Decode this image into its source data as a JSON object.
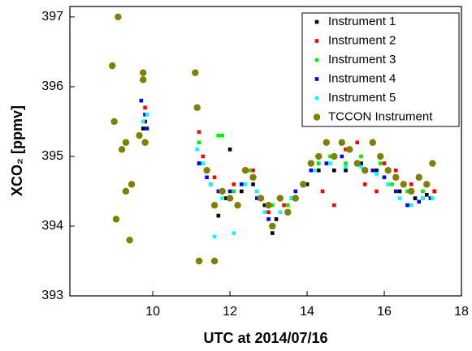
{
  "chart_data": {
    "type": "scatter",
    "xlabel": "UTC at 2014/07/16",
    "ylabel": "XCO₂ [ppmv]",
    "xlim": [
      7.85,
      18
    ],
    "ylim": [
      393,
      397.15
    ],
    "xticks": [
      10,
      12,
      14,
      16,
      18
    ],
    "yticks": [
      393,
      394,
      395,
      396,
      397
    ],
    "legend": "upper right",
    "series": [
      {
        "name": "Instrument 1",
        "color": "#000000",
        "marker": "square",
        "x": [
          9.75,
          9.8,
          11.2,
          11.5,
          11.7,
          11.9,
          12.0,
          12.3,
          12.6,
          12.9,
          13.1,
          13.2,
          13.6,
          14.0,
          14.3,
          14.7,
          15.0,
          15.4,
          15.8,
          16.1,
          16.4,
          16.8,
          17.1,
          17.3
        ],
        "values": [
          395.4,
          395.5,
          394.9,
          394.6,
          394.15,
          394.4,
          395.1,
          394.5,
          394.6,
          394.3,
          393.9,
          394.1,
          394.4,
          394.6,
          394.8,
          394.8,
          394.8,
          394.9,
          394.8,
          394.6,
          394.5,
          394.4,
          394.45,
          394.5
        ]
      },
      {
        "name": "Instrument 2",
        "color": "#ff0000",
        "marker": "square",
        "x": [
          9.8,
          11.2,
          11.3,
          11.6,
          12.1,
          12.6,
          13.0,
          13.4,
          14.1,
          14.4,
          14.7,
          15.0,
          15.3,
          15.5,
          15.8,
          16.0,
          16.3,
          16.7,
          17.0,
          17.3
        ],
        "values": [
          395.7,
          395.35,
          395.0,
          394.7,
          394.6,
          394.8,
          394.2,
          394.3,
          394.9,
          394.5,
          394.3,
          395.1,
          395.2,
          394.6,
          394.5,
          394.9,
          394.8,
          394.6,
          394.4,
          394.5
        ]
      },
      {
        "name": "Instrument 3",
        "color": "#00ee00",
        "marker": "square",
        "x": [
          9.8,
          11.2,
          11.4,
          11.7,
          11.8,
          12.1,
          12.5,
          12.8,
          13.1,
          13.5,
          13.9,
          14.3,
          14.6,
          15.0,
          15.4,
          15.9,
          16.2,
          16.6,
          17.0,
          17.2
        ],
        "values": [
          395.6,
          395.2,
          394.8,
          395.3,
          395.3,
          394.5,
          394.8,
          394.4,
          394.3,
          394.3,
          394.6,
          394.9,
          395.0,
          394.9,
          395.0,
          394.9,
          394.6,
          394.5,
          394.5,
          394.4
        ]
      },
      {
        "name": "Instrument 4",
        "color": "#0000ff",
        "marker": "square",
        "x": [
          9.7,
          9.8,
          9.85,
          11.2,
          11.4,
          11.7,
          12.0,
          12.3,
          12.7,
          13.0,
          13.3,
          13.7,
          14.1,
          14.5,
          14.9,
          15.3,
          15.7,
          16.0,
          16.3,
          16.6,
          16.9,
          17.2
        ],
        "values": [
          395.8,
          395.6,
          395.4,
          394.9,
          394.7,
          394.5,
          394.5,
          394.6,
          394.4,
          394.1,
          394.2,
          394.5,
          394.8,
          394.9,
          395.0,
          394.9,
          394.8,
          394.7,
          394.5,
          394.3,
          394.35,
          394.4
        ]
      },
      {
        "name": "Instrument 5",
        "color": "#00ffff",
        "marker": "square",
        "x": [
          9.75,
          9.85,
          11.15,
          11.3,
          11.5,
          11.6,
          11.8,
          12.1,
          12.4,
          12.7,
          12.9,
          13.1,
          13.3,
          13.6,
          13.9,
          14.2,
          14.6,
          15.0,
          15.4,
          15.8,
          16.1,
          16.4,
          16.7,
          17.0,
          17.25
        ],
        "values": [
          395.5,
          395.6,
          395.1,
          394.9,
          394.6,
          393.85,
          394.4,
          393.9,
          394.6,
          394.5,
          394.2,
          394.0,
          394.2,
          394.4,
          394.6,
          394.8,
          394.9,
          394.85,
          394.85,
          394.75,
          394.6,
          394.4,
          394.3,
          394.4,
          394.4
        ]
      },
      {
        "name": "TCCON Instrument",
        "color": "#808000",
        "marker": "circle",
        "x": [
          8.95,
          9.0,
          9.05,
          9.1,
          9.2,
          9.3,
          9.3,
          9.4,
          9.45,
          9.65,
          9.75,
          9.75,
          9.8,
          11.1,
          11.15,
          11.2,
          11.6,
          11.4,
          11.6,
          11.8,
          12.0,
          12.2,
          12.4,
          12.6,
          12.8,
          13.0,
          13.1,
          13.3,
          13.5,
          13.7,
          13.9,
          14.1,
          14.3,
          14.5,
          14.7,
          14.9,
          15.1,
          15.3,
          15.5,
          15.7,
          15.9,
          16.1,
          16.3,
          16.5,
          16.7,
          16.9,
          17.1,
          17.25
        ],
        "values": [
          396.3,
          395.5,
          394.1,
          397.0,
          395.1,
          395.2,
          394.5,
          393.8,
          394.6,
          395.3,
          396.2,
          396.1,
          395.2,
          396.2,
          395.7,
          393.5,
          393.5,
          394.8,
          394.3,
          394.5,
          394.4,
          394.3,
          394.8,
          394.7,
          394.4,
          394.3,
          394.0,
          394.4,
          394.2,
          394.4,
          394.6,
          394.9,
          395.0,
          395.2,
          395.0,
          395.2,
          395.1,
          394.9,
          394.8,
          395.2,
          395.0,
          394.8,
          394.7,
          394.6,
          394.5,
          394.7,
          394.6,
          394.9
        ]
      }
    ]
  }
}
